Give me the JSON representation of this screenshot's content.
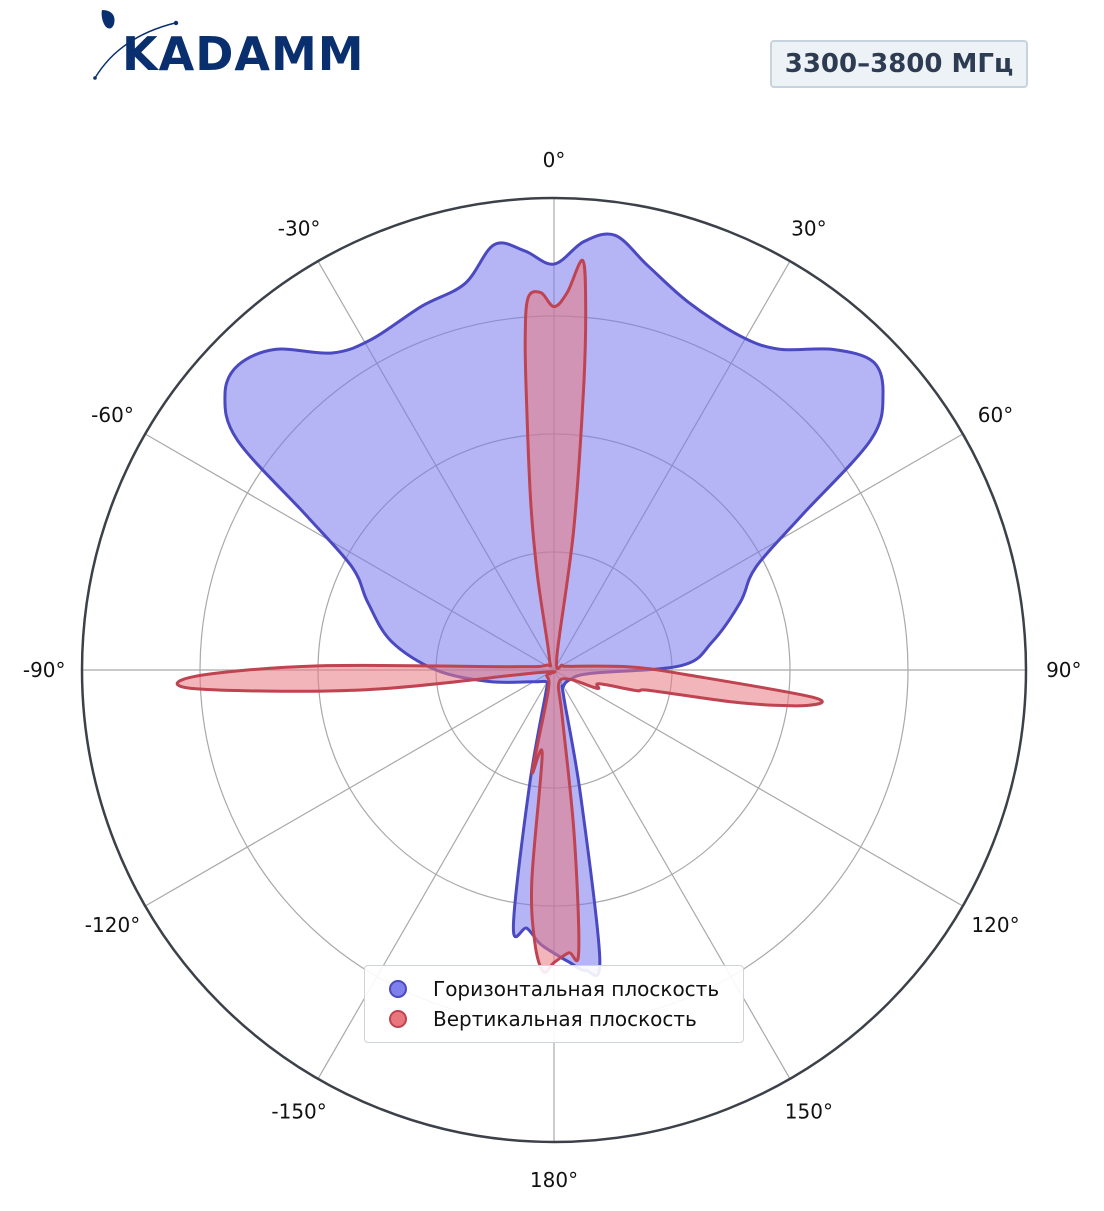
{
  "brand": {
    "logo_text": "KADAMM",
    "primary_color": "#0a2f6e"
  },
  "badge": {
    "label": "3300–3800 МГц"
  },
  "chart_data": {
    "type": "polar-area",
    "angular_ticks": [
      "0°",
      "30°",
      "60°",
      "90°",
      "120°",
      "150°",
      "180°",
      "-150°",
      "-120°",
      "-90°",
      "-60°",
      "-30°"
    ],
    "angular_tick_degrees": [
      0,
      30,
      60,
      90,
      120,
      150,
      180,
      -150,
      -120,
      -90,
      -60,
      -30
    ],
    "radial_range": [
      0,
      1
    ],
    "radial_grid": [
      0.25,
      0.5,
      0.75,
      1.0
    ],
    "grid": true,
    "legend_position": "bottom-center",
    "series": [
      {
        "name": "Горизонтальная плоскость",
        "color": "#4a49c0",
        "fill": "rgba(121,121,236,0.55)",
        "points": [
          {
            "deg": -180,
            "r": 0.6
          },
          {
            "deg": -177,
            "r": 0.58
          },
          {
            "deg": -174,
            "r": 0.55
          },
          {
            "deg": -171,
            "r": 0.55
          },
          {
            "deg": -168,
            "r": 0.25
          },
          {
            "deg": -160,
            "r": 0.05
          },
          {
            "deg": -150,
            "r": 0.03
          },
          {
            "deg": -120,
            "r": 0.05
          },
          {
            "deg": -100,
            "r": 0.14
          },
          {
            "deg": -90,
            "r": 0.25
          },
          {
            "deg": -80,
            "r": 0.35
          },
          {
            "deg": -70,
            "r": 0.42
          },
          {
            "deg": -63,
            "r": 0.48
          },
          {
            "deg": -58,
            "r": 0.62
          },
          {
            "deg": -54,
            "r": 0.83
          },
          {
            "deg": -50,
            "r": 0.91
          },
          {
            "deg": -46,
            "r": 0.93
          },
          {
            "deg": -41,
            "r": 0.9
          },
          {
            "deg": -35,
            "r": 0.82
          },
          {
            "deg": -29,
            "r": 0.8
          },
          {
            "deg": -20,
            "r": 0.82
          },
          {
            "deg": -13,
            "r": 0.84
          },
          {
            "deg": -8,
            "r": 0.91
          },
          {
            "deg": -4,
            "r": 0.89
          },
          {
            "deg": 0,
            "r": 0.86
          },
          {
            "deg": 4,
            "r": 0.91
          },
          {
            "deg": 8,
            "r": 0.93
          },
          {
            "deg": 13,
            "r": 0.88
          },
          {
            "deg": 20,
            "r": 0.83
          },
          {
            "deg": 29,
            "r": 0.81
          },
          {
            "deg": 35,
            "r": 0.83
          },
          {
            "deg": 41,
            "r": 0.9
          },
          {
            "deg": 46,
            "r": 0.94
          },
          {
            "deg": 50,
            "r": 0.91
          },
          {
            "deg": 54,
            "r": 0.83
          },
          {
            "deg": 58,
            "r": 0.62
          },
          {
            "deg": 63,
            "r": 0.48
          },
          {
            "deg": 70,
            "r": 0.42
          },
          {
            "deg": 80,
            "r": 0.34
          },
          {
            "deg": 88,
            "r": 0.27
          },
          {
            "deg": 95,
            "r": 0.08
          },
          {
            "deg": 120,
            "r": 0.04
          },
          {
            "deg": 150,
            "r": 0.04
          },
          {
            "deg": 160,
            "r": 0.06
          },
          {
            "deg": 168,
            "r": 0.27
          },
          {
            "deg": 171,
            "r": 0.62
          },
          {
            "deg": 174,
            "r": 0.64
          },
          {
            "deg": 177,
            "r": 0.62
          },
          {
            "deg": 180,
            "r": 0.6
          }
        ]
      },
      {
        "name": "Вертикальная плоскость",
        "color": "#bf4350",
        "fill": "rgba(232,120,128,0.55)",
        "points": [
          {
            "deg": -180,
            "r": 0.62
          },
          {
            "deg": -178,
            "r": 0.64
          },
          {
            "deg": -176,
            "r": 0.58
          },
          {
            "deg": -174,
            "r": 0.45
          },
          {
            "deg": -172,
            "r": 0.18
          },
          {
            "deg": -168,
            "r": 0.22
          },
          {
            "deg": -165,
            "r": 0.05
          },
          {
            "deg": -130,
            "r": 0.02
          },
          {
            "deg": -100,
            "r": 0.03
          },
          {
            "deg": -96,
            "r": 0.4
          },
          {
            "deg": -93,
            "r": 0.76
          },
          {
            "deg": -91,
            "r": 0.76
          },
          {
            "deg": -89,
            "r": 0.5
          },
          {
            "deg": -86,
            "r": 0.1
          },
          {
            "deg": -60,
            "r": 0.02
          },
          {
            "deg": -20,
            "r": 0.03
          },
          {
            "deg": -10,
            "r": 0.2
          },
          {
            "deg": -8,
            "r": 0.35
          },
          {
            "deg": -6,
            "r": 0.55
          },
          {
            "deg": -5,
            "r": 0.7
          },
          {
            "deg": -4,
            "r": 0.79
          },
          {
            "deg": -2,
            "r": 0.8
          },
          {
            "deg": 0,
            "r": 0.77
          },
          {
            "deg": 2,
            "r": 0.8
          },
          {
            "deg": 4,
            "r": 0.87
          },
          {
            "deg": 5,
            "r": 0.77
          },
          {
            "deg": 6,
            "r": 0.6
          },
          {
            "deg": 8,
            "r": 0.3
          },
          {
            "deg": 12,
            "r": 0.03
          },
          {
            "deg": 60,
            "r": 0.02
          },
          {
            "deg": 75,
            "r": 0.03
          },
          {
            "deg": 84,
            "r": 0.08
          },
          {
            "deg": 88,
            "r": 0.17
          },
          {
            "deg": 92,
            "r": 0.28
          },
          {
            "deg": 96,
            "r": 0.55
          },
          {
            "deg": 98,
            "r": 0.54
          },
          {
            "deg": 100,
            "r": 0.4
          },
          {
            "deg": 102,
            "r": 0.21
          },
          {
            "deg": 104,
            "r": 0.18
          },
          {
            "deg": 107,
            "r": 0.1
          },
          {
            "deg": 113,
            "r": 0.1
          },
          {
            "deg": 120,
            "r": 0.04
          },
          {
            "deg": 160,
            "r": 0.03
          },
          {
            "deg": 170,
            "r": 0.1
          },
          {
            "deg": 173,
            "r": 0.35
          },
          {
            "deg": 175,
            "r": 0.6
          },
          {
            "deg": 177,
            "r": 0.6
          },
          {
            "deg": 180,
            "r": 0.62
          }
        ]
      }
    ]
  }
}
